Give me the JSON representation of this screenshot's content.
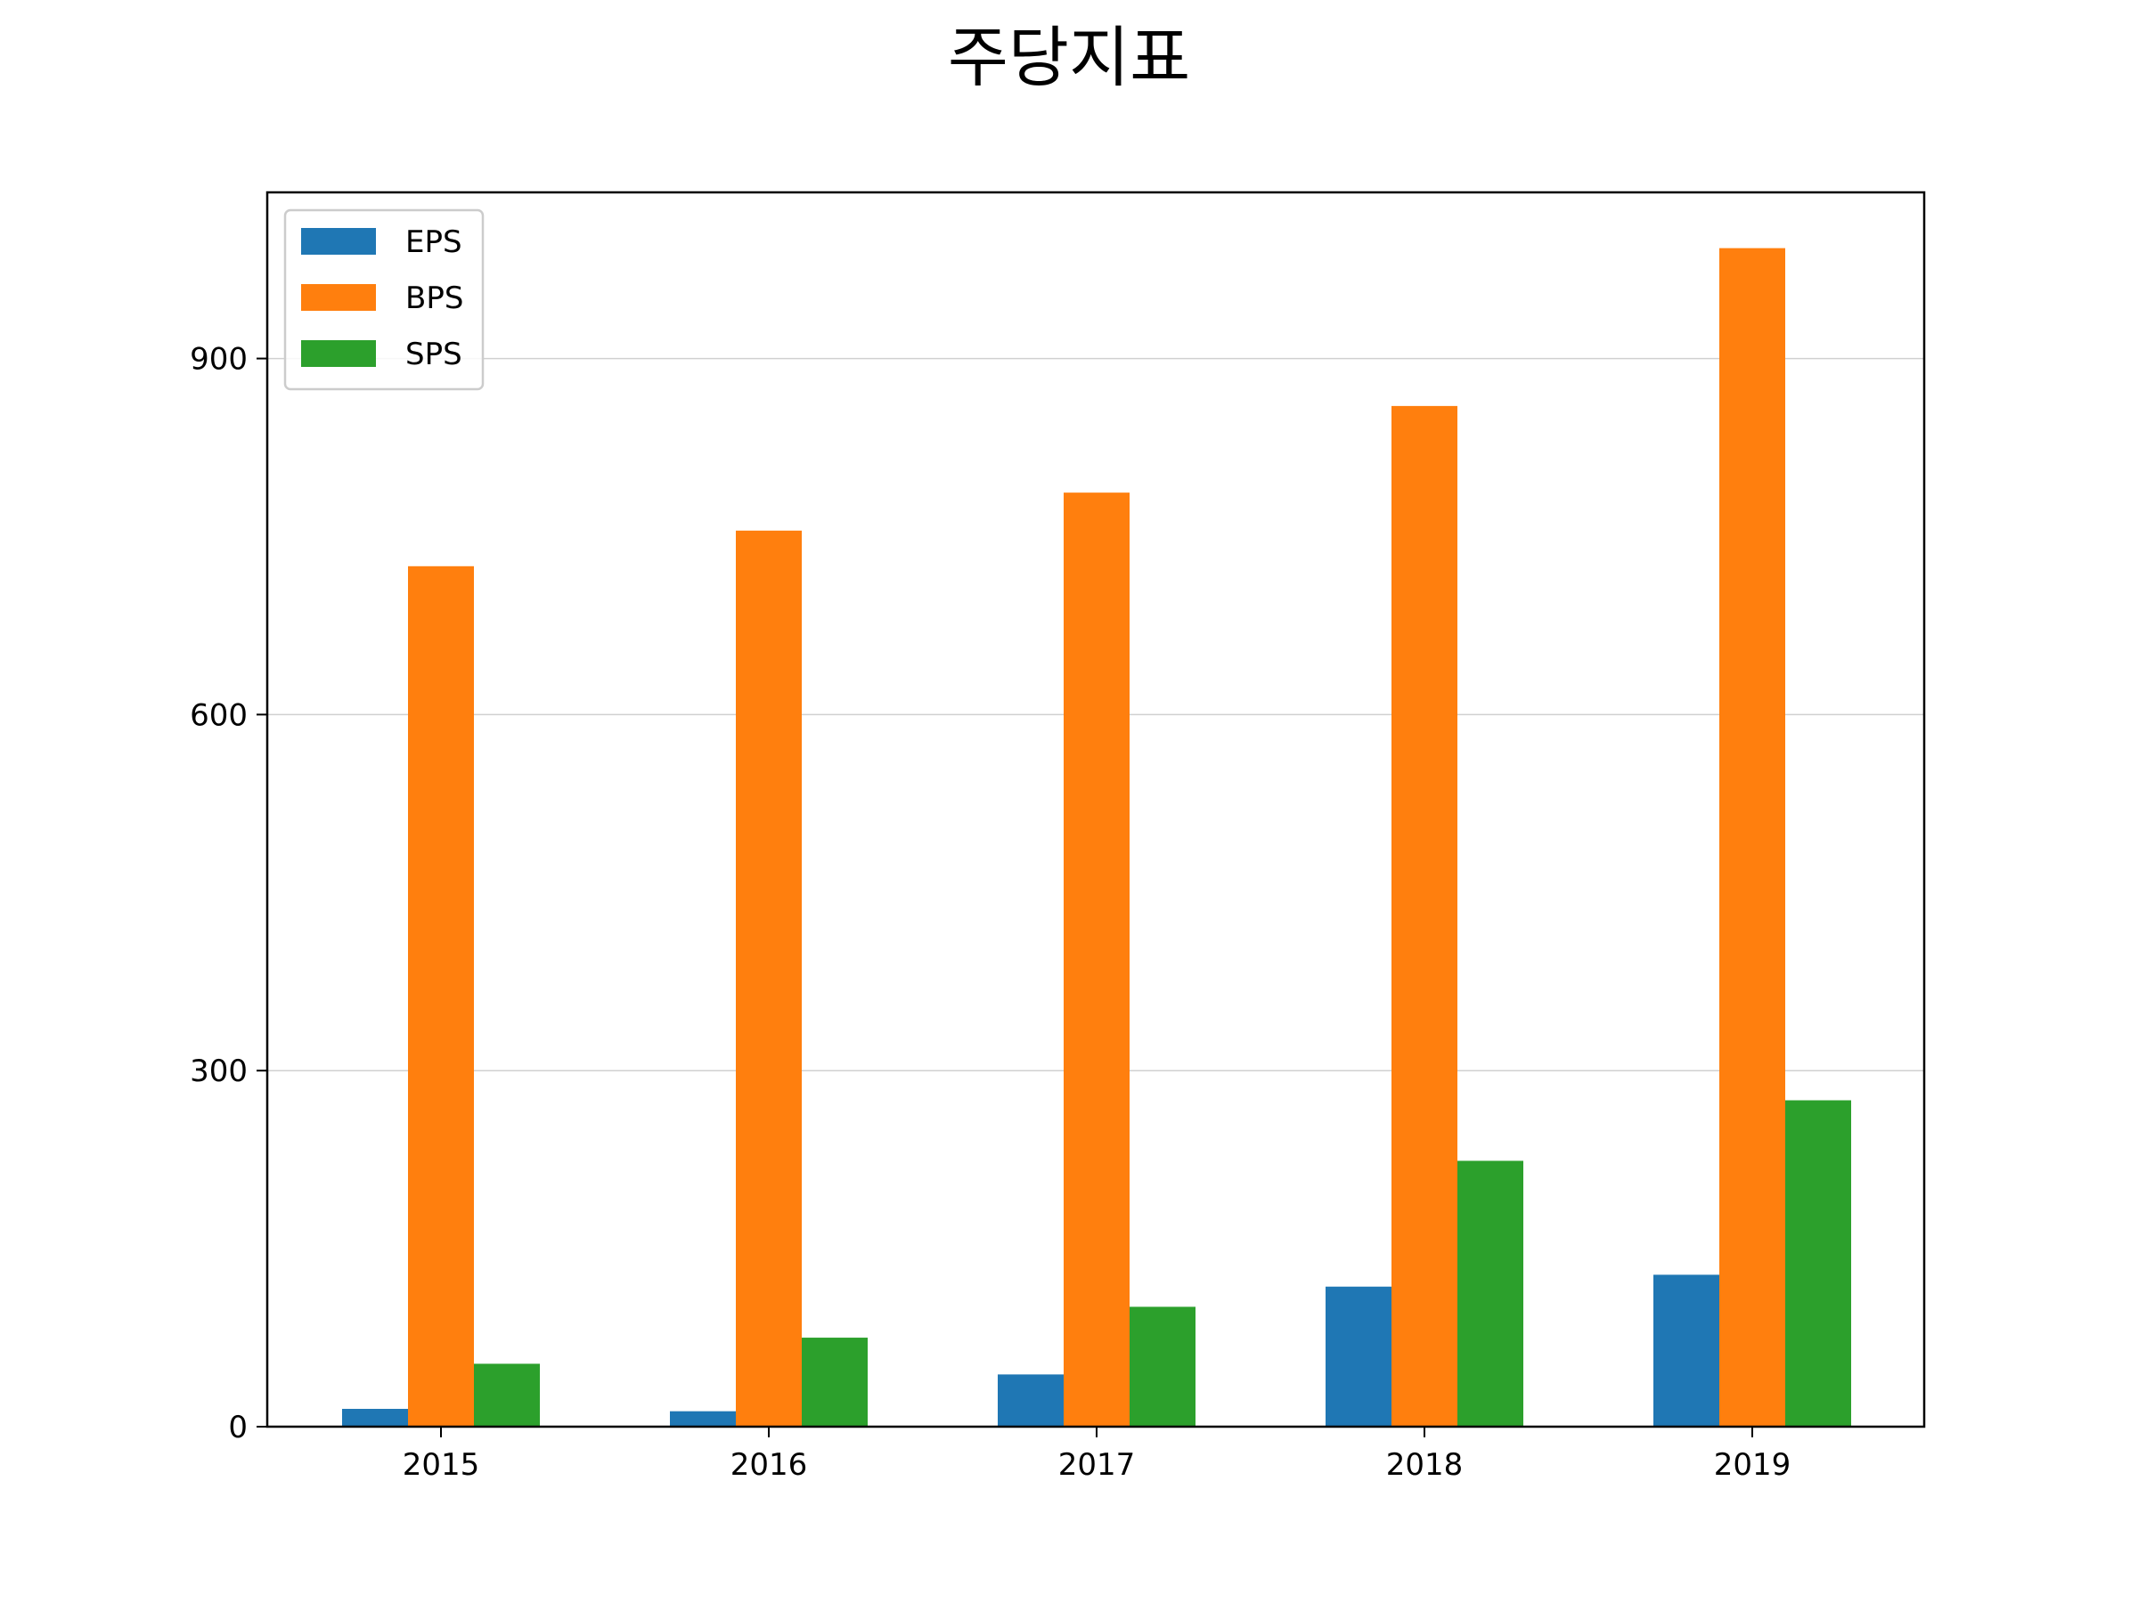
{
  "chart_data": {
    "type": "bar",
    "title": "주당지표",
    "categories": [
      "2015",
      "2016",
      "2017",
      "2018",
      "2019"
    ],
    "series": [
      {
        "name": "EPS",
        "values": [
          15,
          13,
          44,
          118,
          128
        ],
        "color": "#1f77b4"
      },
      {
        "name": "BPS",
        "values": [
          725,
          755,
          787,
          860,
          993
        ],
        "color": "#ff7f0e"
      },
      {
        "name": "SPS",
        "values": [
          53,
          75,
          101,
          224,
          275
        ],
        "color": "#2ca02c"
      }
    ],
    "xlabel": "",
    "ylabel": "",
    "ylim": [
      0,
      1040
    ],
    "yticks": [
      0,
      300,
      600,
      900
    ],
    "grid": "horizontal",
    "legend_position": "upper-left"
  }
}
